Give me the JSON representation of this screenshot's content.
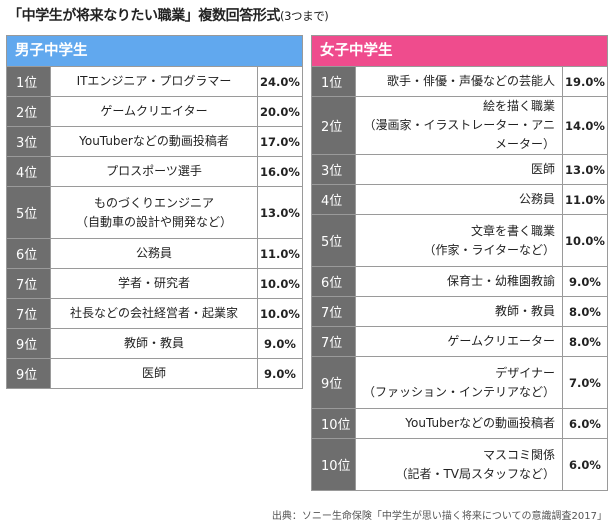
{
  "title": {
    "main": "「中学生が将来なりたい職業」複数回答形式",
    "sub": "(3つまで)"
  },
  "chart_data": {
    "type": "table",
    "title": "「中学生が将来なりたい職業」複数回答形式(3つまで)",
    "boys": {
      "label": "男子中学生",
      "color": "#61A8EE",
      "rows": [
        {
          "rank": "1位",
          "job": [
            "ITエンジニア・プログラマー"
          ],
          "pct": "24.0%",
          "value": 24.0
        },
        {
          "rank": "2位",
          "job": [
            "ゲームクリエイター"
          ],
          "pct": "20.0%",
          "value": 20.0
        },
        {
          "rank": "3位",
          "job": [
            "YouTuberなどの動画投稿者"
          ],
          "pct": "17.0%",
          "value": 17.0
        },
        {
          "rank": "4位",
          "job": [
            "プロスポーツ選手"
          ],
          "pct": "16.0%",
          "value": 16.0
        },
        {
          "rank": "5位",
          "job": [
            "ものづくりエンジニア",
            "（自動車の設計や開発など）"
          ],
          "pct": "13.0%",
          "value": 13.0
        },
        {
          "rank": "6位",
          "job": [
            "公務員"
          ],
          "pct": "11.0%",
          "value": 11.0
        },
        {
          "rank": "7位",
          "job": [
            "学者・研究者"
          ],
          "pct": "10.0%",
          "value": 10.0
        },
        {
          "rank": "7位",
          "job": [
            "社長などの会社経営者・起業家"
          ],
          "pct": "10.0%",
          "value": 10.0
        },
        {
          "rank": "9位",
          "job": [
            "教師・教員"
          ],
          "pct": "9.0%",
          "value": 9.0
        },
        {
          "rank": "9位",
          "job": [
            "医師"
          ],
          "pct": "9.0%",
          "value": 9.0
        }
      ]
    },
    "girls": {
      "label": "女子中学生",
      "color": "#EF4C8D",
      "rows": [
        {
          "rank": "1位",
          "job": [
            "歌手・俳優・声優などの芸能人"
          ],
          "pct": "19.0%",
          "value": 19.0
        },
        {
          "rank": "2位",
          "job": [
            "絵を描く職業",
            "（漫画家・イラストレーター・アニ",
            "メーター）"
          ],
          "pct": "14.0%",
          "value": 14.0
        },
        {
          "rank": "3位",
          "job": [
            "医師"
          ],
          "pct": "13.0%",
          "value": 13.0
        },
        {
          "rank": "4位",
          "job": [
            "公務員"
          ],
          "pct": "11.0%",
          "value": 11.0
        },
        {
          "rank": "5位",
          "job": [
            "文章を書く職業",
            "（作家・ライターなど）"
          ],
          "pct": "10.0%",
          "value": 10.0
        },
        {
          "rank": "6位",
          "job": [
            "保育士・幼稚園教諭"
          ],
          "pct": "9.0%",
          "value": 9.0
        },
        {
          "rank": "7位",
          "job": [
            "教師・教員"
          ],
          "pct": "8.0%",
          "value": 8.0
        },
        {
          "rank": "7位",
          "job": [
            "ゲームクリエーター"
          ],
          "pct": "8.0%",
          "value": 8.0
        },
        {
          "rank": "9位",
          "job": [
            "デザイナー",
            "（ファッション・インテリアなど）"
          ],
          "pct": "7.0%",
          "value": 7.0
        },
        {
          "rank": "10位",
          "job": [
            "YouTuberなどの動画投稿者"
          ],
          "pct": "6.0%",
          "value": 6.0
        },
        {
          "rank": "10位",
          "job": [
            "マスコミ関係",
            "（記者・TV局スタッフなど）"
          ],
          "pct": "6.0%",
          "value": 6.0
        }
      ]
    }
  },
  "source": "出典：ソニー生命保険「中学生が思い描く将来についての意識調査2017」"
}
